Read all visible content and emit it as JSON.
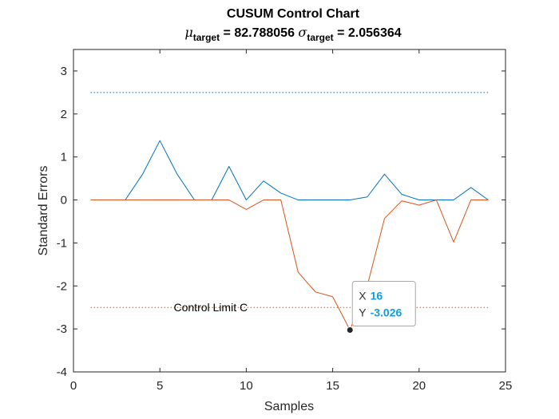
{
  "chart_data": {
    "type": "line",
    "title": "CUSUM Control Chart",
    "subtitle": {
      "mu_symbol": "μ",
      "mu_sub": "target",
      "mu_text": " = 82.788056 ",
      "sigma_symbol": "σ",
      "sigma_sub": "target",
      "sigma_text": " = 2.056364"
    },
    "xlabel": "Samples",
    "ylabel": "Standard Errors",
    "xlim": [
      0,
      25
    ],
    "ylim": [
      -4,
      3.5
    ],
    "xticks": [
      0,
      5,
      10,
      15,
      20,
      25
    ],
    "yticks": [
      -4,
      -3,
      -2,
      -1,
      0,
      1,
      2,
      3
    ],
    "x": [
      1,
      2,
      3,
      4,
      5,
      6,
      7,
      8,
      9,
      10,
      11,
      12,
      13,
      14,
      15,
      16,
      17,
      18,
      19,
      20,
      21,
      22,
      23,
      24
    ],
    "series": [
      {
        "color": "#0072bd",
        "values": [
          0,
          0,
          0,
          0.6,
          1.38,
          0.6,
          0,
          0,
          0.78,
          0,
          0.44,
          0.16,
          0,
          0,
          0,
          0,
          0.07,
          0.6,
          0.13,
          0,
          0,
          0,
          0.29,
          0
        ]
      },
      {
        "color": "#d95319",
        "values": [
          0,
          0,
          0,
          0,
          0,
          0,
          0,
          0,
          0,
          -0.22,
          0,
          0,
          -1.68,
          -2.14,
          -2.25,
          -3.026,
          -2.0,
          -0.43,
          -0.02,
          -0.12,
          0,
          -0.98,
          0,
          0
        ]
      }
    ],
    "control_limits": [
      {
        "value": 2.5,
        "color": "#0072bd"
      },
      {
        "value": -2.5,
        "color": "#d95319"
      }
    ],
    "annotation": {
      "text": "Control Limit C",
      "x": 5.8,
      "y": -2.5
    },
    "datatip": {
      "x_key": "X",
      "x_value": "16",
      "y_key": "Y",
      "y_value": "-3.026",
      "point_x": 16,
      "point_y": -3.026
    },
    "grid": false,
    "box": true
  }
}
